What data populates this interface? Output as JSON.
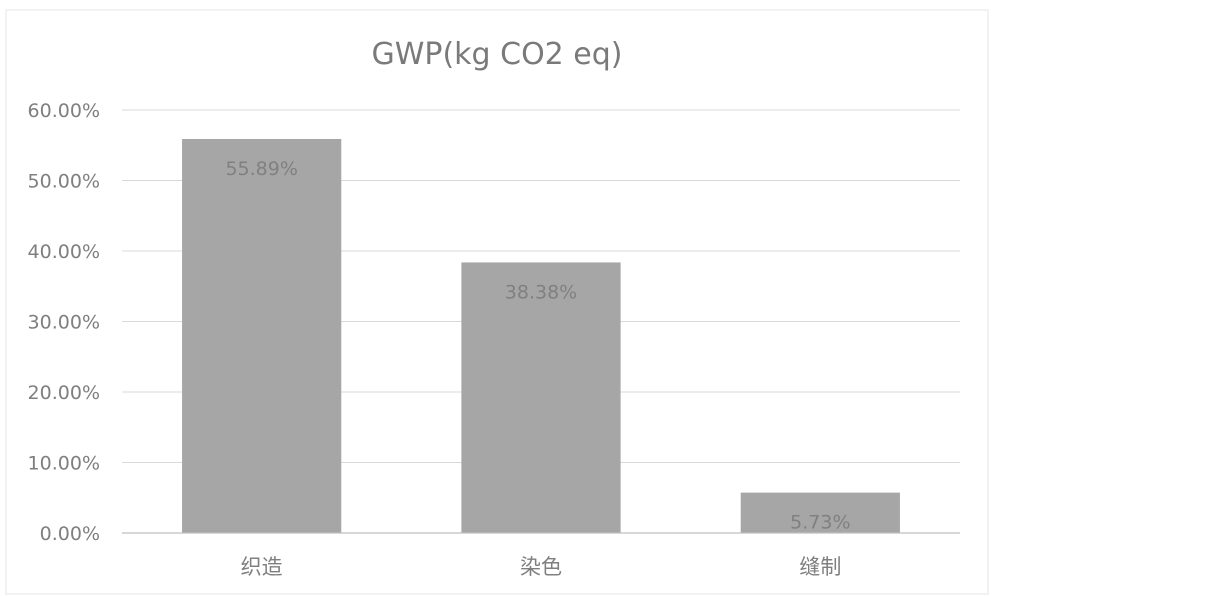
{
  "chart_data": {
    "type": "bar",
    "title": "GWP(kg CO2 eq)",
    "xlabel": "",
    "ylabel": "",
    "categories": [
      "织造",
      "染色",
      "缝制"
    ],
    "values": [
      55.89,
      38.38,
      5.73
    ],
    "data_labels": [
      "55.89%",
      "38.38%",
      "5.73%"
    ],
    "y_ticks": [
      "0.00%",
      "10.00%",
      "20.00%",
      "30.00%",
      "40.00%",
      "50.00%",
      "60.00%"
    ],
    "ylim": [
      0,
      60
    ],
    "grid": true,
    "legend": "none",
    "bar_color": "#a6a6a6"
  }
}
